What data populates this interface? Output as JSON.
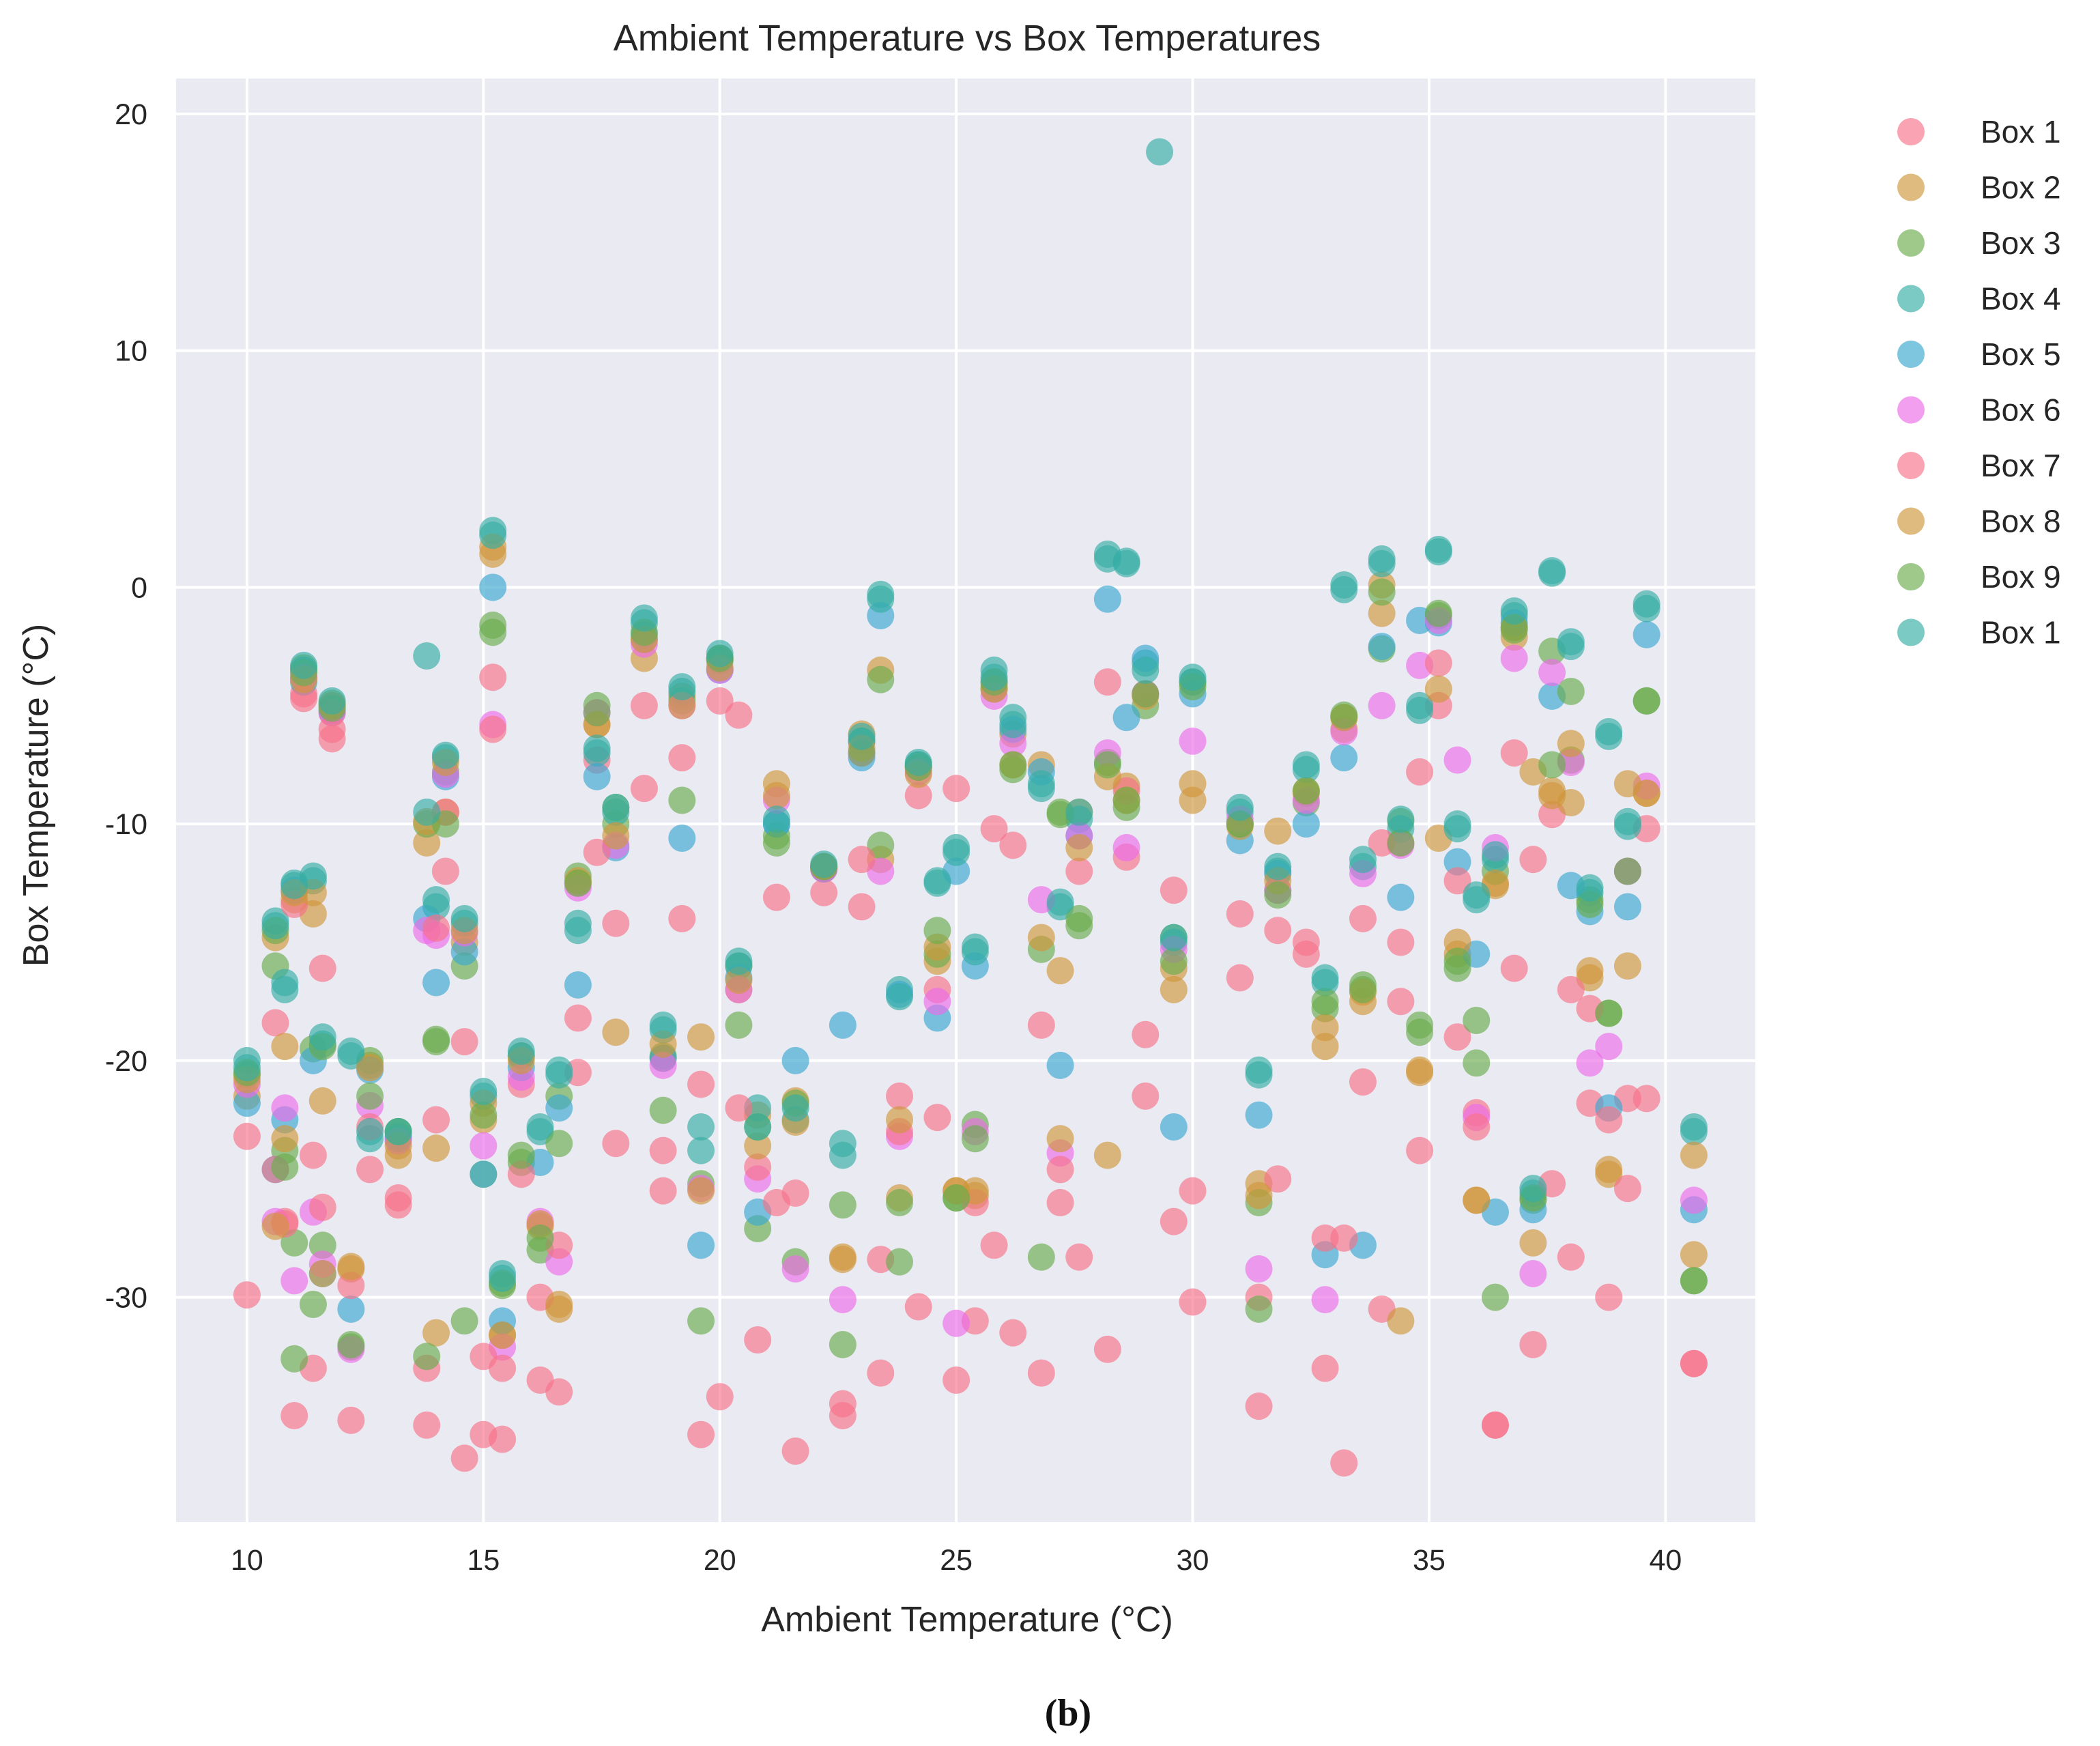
{
  "caption": "(b)",
  "chart_data": {
    "type": "scatter",
    "title": "Ambient Temperature vs Box Temperatures",
    "xlabel": "Ambient Temperature (°C)",
    "ylabel": "Box Temperature (°C)",
    "xlim": [
      8.5,
      41.9
    ],
    "ylim": [
      -39.5,
      21.5
    ],
    "xticks": [
      10,
      15,
      20,
      25,
      30,
      35,
      40
    ],
    "yticks": [
      -30,
      -20,
      -10,
      0,
      10,
      20
    ],
    "grid": true,
    "legend_position": "right-outside-top",
    "background": "#eaeaf2",
    "marker_alpha": 0.65,
    "x": [
      10.0,
      10.6,
      10.8,
      11.0,
      11.2,
      11.4,
      11.6,
      11.8,
      12.2,
      12.6,
      13.2,
      13.8,
      14.0,
      14.2,
      14.6,
      15.0,
      15.2,
      15.4,
      15.8,
      16.2,
      16.6,
      17.0,
      17.4,
      17.8,
      18.4,
      18.8,
      19.2,
      19.6,
      20.0,
      20.4,
      20.8,
      21.2,
      21.6,
      22.2,
      22.6,
      23.0,
      23.4,
      23.8,
      24.2,
      24.6,
      25.0,
      25.4,
      25.8,
      26.2,
      26.8,
      27.2,
      27.6,
      28.2,
      28.6,
      29.0,
      29.6,
      30.0,
      31.0,
      31.4,
      31.8,
      32.4,
      32.8,
      33.2,
      33.6,
      34.0,
      34.4,
      34.8,
      35.2,
      35.6,
      36.0,
      36.4,
      36.8,
      37.2,
      37.6,
      38.0,
      38.4,
      38.8,
      39.2,
      39.6,
      40.6
    ],
    "series": [
      {
        "name": "Box 1",
        "color": "#f77189",
        "values": [
          -23.2,
          -18.4,
          -26.8,
          -35.0,
          -4.5,
          -33.0,
          -16.1,
          -6.4,
          -35.2,
          -24.6,
          -26.1,
          -35.4,
          -22.5,
          -12.0,
          -36.8,
          -35.8,
          -3.8,
          -36.0,
          -21.0,
          -33.5,
          -34.0,
          -20.5,
          -7.3,
          -14.2,
          -5.0,
          -23.8,
          -7.2,
          -35.8,
          -34.2,
          -5.4,
          -31.8,
          -13.1,
          -36.5,
          -12.9,
          -35.0,
          -13.5,
          -33.2,
          -21.5,
          -8.8,
          -17.0,
          -33.5,
          -31.0,
          -10.2,
          -31.5,
          -33.2,
          -26.0,
          -28.3,
          -32.2,
          -11.4,
          -21.5,
          -12.8,
          -30.2,
          -16.5,
          -34.6,
          -14.5,
          -15.5,
          -33.0,
          -37.0,
          -20.9,
          -30.5,
          -17.5,
          -23.8,
          -5.0,
          -19.0,
          -22.2,
          -35.4,
          -16.1,
          -32.0,
          -9.6,
          -28.3,
          -21.8,
          -30.0,
          -21.6,
          -10.2,
          -32.8
        ]
      },
      {
        "name": "Box 2",
        "color": "#d0963a",
        "values": [
          -21.5,
          -14.8,
          -19.4,
          -13.2,
          -3.8,
          -13.8,
          -21.7,
          -5.3,
          -28.8,
          -20.2,
          -24.0,
          -10.8,
          -31.5,
          -9.5,
          -15.0,
          -22.5,
          1.4,
          -31.6,
          -19.8,
          -27.0,
          -30.5,
          -12.5,
          -5.8,
          -18.8,
          -3.0,
          -19.9,
          -4.6,
          -19.0,
          -3.0,
          -17.0,
          -22.3,
          -8.3,
          -21.7,
          -11.9,
          -28.4,
          -6.2,
          -11.5,
          -25.8,
          -7.6,
          -15.8,
          -25.5,
          -25.7,
          -4.2,
          -6.2,
          -7.5,
          -16.2,
          -9.5,
          -24.0,
          -8.4,
          -4.5,
          -16.1,
          -9.0,
          -10.0,
          -25.2,
          -10.3,
          -8.7,
          -19.4,
          -6.0,
          -17.5,
          0.1,
          -10.8,
          -20.5,
          -10.6,
          -15.5,
          -25.9,
          -12.6,
          -2.1,
          -27.7,
          -8.8,
          -9.1,
          -16.5,
          -24.8,
          -16.0,
          -8.7,
          -28.2
        ]
      },
      {
        "name": "Box 3",
        "color": "#6aac4d",
        "values": [
          -20.6,
          -16.0,
          -23.8,
          -27.7,
          -3.4,
          -19.5,
          -27.8,
          -4.9,
          -32.1,
          -20.0,
          -23.0,
          -10.0,
          -19.1,
          -7.8,
          -16.0,
          -24.8,
          -1.9,
          -29.5,
          -24.3,
          -28.0,
          -21.5,
          -12.2,
          -5.0,
          -10.0,
          -2.2,
          -19.8,
          -4.8,
          -25.2,
          -3.1,
          -16.0,
          -27.1,
          -10.5,
          -28.5,
          -11.8,
          -26.1,
          -6.5,
          -10.9,
          -26.0,
          -7.5,
          -15.5,
          -25.8,
          -22.7,
          -4.3,
          -7.7,
          -15.3,
          -9.6,
          -14.3,
          -7.4,
          -9.3,
          -5.0,
          -14.8,
          -4.0,
          -10.0,
          -26.0,
          -12.8,
          -9.1,
          -17.8,
          -5.5,
          -16.8,
          -2.6,
          -9.9,
          -18.8,
          -1.2,
          -16.1,
          -20.1,
          -12.0,
          -1.8,
          -25.9,
          -2.7,
          -7.3,
          -13.2,
          -18.0,
          -12.0,
          -4.8,
          -29.3
        ]
      },
      {
        "name": "Box 4",
        "color": "#36ada4",
        "values": [
          -20.0,
          -14.1,
          -17.0,
          -12.5,
          -3.5,
          -12.4,
          -19.3,
          -5.0,
          -19.8,
          -23.3,
          -23.2,
          -2.9,
          -13.5,
          -7.2,
          -14.2,
          -21.5,
          2.4,
          -29.0,
          -19.8,
          -23.0,
          -20.6,
          -14.5,
          -7.0,
          -9.5,
          -1.5,
          -18.7,
          -4.4,
          -22.8,
          -3.0,
          -16.0,
          -22.0,
          -10.0,
          -22.5,
          -11.9,
          -24.0,
          -6.5,
          -0.3,
          -17.0,
          -7.5,
          -12.5,
          -11.0,
          -15.2,
          -3.5,
          -5.5,
          -8.5,
          -13.5,
          -9.8,
          1.2,
          1.0,
          -3.2,
          -15.0,
          -4.0,
          -9.5,
          -20.6,
          -12.0,
          -7.7,
          -16.7,
          -0.1,
          -11.8,
          1.2,
          -10.2,
          -5.0,
          1.5,
          -10.0,
          -13.2,
          -11.5,
          -1.2,
          -25.6,
          0.6,
          -2.5,
          -12.9,
          -6.1,
          -9.9,
          -0.7,
          -23.0
        ]
      },
      {
        "name": "Box 5",
        "color": "#39a7d0",
        "values": [
          -21.8,
          -24.6,
          -22.5,
          -12.8,
          -4.0,
          -20.0,
          -29.0,
          -5.2,
          -30.5,
          -20.4,
          -23.3,
          -14.0,
          -16.7,
          -8.0,
          -15.4,
          -24.8,
          0.0,
          -31.0,
          -20.3,
          -24.3,
          -22.0,
          -16.8,
          -8.0,
          -11.0,
          -2.0,
          -19.9,
          -10.6,
          -27.8,
          -3.5,
          -16.5,
          -26.4,
          -10.0,
          -20.0,
          -11.8,
          -18.5,
          -7.2,
          -1.2,
          -17.2,
          -7.6,
          -18.2,
          -12.0,
          -16.0,
          -4.0,
          -6.0,
          -7.8,
          -20.2,
          -10.5,
          -0.5,
          -5.5,
          -3.0,
          -22.8,
          -4.5,
          -10.7,
          -22.3,
          -12.1,
          -10.0,
          -28.2,
          -7.2,
          -27.8,
          -2.5,
          -13.1,
          -1.4,
          -1.5,
          -11.6,
          -15.5,
          -26.4,
          -1.5,
          -26.3,
          -4.6,
          -12.6,
          -13.7,
          -22.0,
          -13.5,
          -2.0,
          -26.3
        ]
      },
      {
        "name": "Box 6",
        "color": "#ed6be8",
        "values": [
          -21.0,
          -26.8,
          -22.0,
          -29.3,
          -3.8,
          -26.4,
          -28.6,
          -5.3,
          -32.2,
          -21.9,
          -23.4,
          -14.5,
          -14.7,
          -7.9,
          -14.6,
          -23.6,
          -5.8,
          -32.1,
          -20.7,
          -26.8,
          -28.5,
          -12.7,
          -5.3,
          -10.9,
          -2.4,
          -20.2,
          -5.0,
          -25.4,
          -3.5,
          -17.0,
          -25.0,
          -9.0,
          -28.8,
          -11.9,
          -30.1,
          -7.0,
          -12.0,
          -23.2,
          -7.8,
          -17.5,
          -31.1,
          -23.0,
          -4.6,
          -6.6,
          -13.2,
          -23.9,
          -10.5,
          -7.0,
          -11.0,
          -4.5,
          -15.3,
          -6.5,
          -9.8,
          -28.8,
          -12.8,
          -9.0,
          -30.1,
          -6.1,
          -12.1,
          -5.0,
          -10.9,
          -3.3,
          -1.4,
          -7.3,
          -22.4,
          -11.0,
          -3.0,
          -29.0,
          -3.6,
          -7.4,
          -20.1,
          -19.4,
          -12.0,
          -8.4,
          -25.9
        ]
      },
      {
        "name": "Box 7",
        "color": "#f77189",
        "values": [
          -29.9,
          -24.6,
          -26.9,
          -13.4,
          -4.7,
          -24.0,
          -26.2,
          -6.0,
          -29.5,
          -22.8,
          -25.8,
          -33.0,
          -14.4,
          -9.5,
          -19.2,
          -32.5,
          -6.0,
          -33.0,
          -24.8,
          -30.0,
          -27.8,
          -18.2,
          -11.2,
          -23.5,
          -8.5,
          -25.5,
          -14.0,
          -21.0,
          -4.8,
          -22.0,
          -24.5,
          -26.0,
          -25.6,
          -11.8,
          -34.5,
          -11.5,
          -28.4,
          -23.0,
          -30.4,
          -22.4,
          -8.5,
          -26.0,
          -27.8,
          -10.9,
          -18.5,
          -24.6,
          -12.0,
          -4.0,
          -8.6,
          -18.9,
          -26.8,
          -25.5,
          -13.8,
          -30.0,
          -25.0,
          -15.0,
          -27.5,
          -27.5,
          -14.0,
          -10.8,
          -15.0,
          -7.8,
          -3.2,
          -12.4,
          -22.8,
          -35.4,
          -7.0,
          -11.5,
          -25.2,
          -17.0,
          -17.8,
          -22.5,
          -25.4,
          -21.6,
          -32.8
        ]
      },
      {
        "name": "Box 8",
        "color": "#d0963a",
        "values": [
          -20.8,
          -27.0,
          -23.3,
          -12.9,
          -3.9,
          -12.9,
          -29.0,
          -5.0,
          -28.7,
          -20.3,
          -23.6,
          -9.9,
          -23.7,
          -7.4,
          -14.5,
          -21.8,
          1.7,
          -31.6,
          -20.0,
          -26.9,
          -30.3,
          -12.4,
          -5.8,
          -10.5,
          -2.2,
          -19.3,
          -5.0,
          -25.5,
          -3.4,
          -16.6,
          -23.6,
          -8.8,
          -22.6,
          -11.8,
          -28.3,
          -6.8,
          -3.5,
          -22.5,
          -7.9,
          -15.2,
          -25.5,
          -25.5,
          -4.3,
          -7.5,
          -14.8,
          -23.3,
          -11.0,
          -8.0,
          -9.0,
          -4.6,
          -17.0,
          -8.3,
          -10.1,
          -25.7,
          -12.4,
          -8.6,
          -18.6,
          -5.5,
          -17.1,
          -1.1,
          -31.0,
          -20.4,
          -4.3,
          -15.0,
          -25.9,
          -12.5,
          -1.7,
          -7.8,
          -8.6,
          -6.6,
          -16.2,
          -24.6,
          -8.3,
          -8.7,
          -24.0
        ]
      },
      {
        "name": "Box 9",
        "color": "#6aac4d",
        "values": [
          -20.5,
          -14.5,
          -24.5,
          -32.6,
          -3.6,
          -30.3,
          -19.4,
          -5.1,
          -32.0,
          -21.5,
          -23.0,
          -32.5,
          -19.2,
          -10.0,
          -31.0,
          -22.3,
          -1.6,
          -29.4,
          -24.0,
          -27.5,
          -23.5,
          -12.5,
          -5.3,
          -9.3,
          -1.9,
          -22.1,
          -9.0,
          -31.0,
          -3.0,
          -18.5,
          -22.8,
          -10.8,
          -21.8,
          -11.8,
          -32.0,
          -7.0,
          -3.9,
          -28.5,
          -7.6,
          -14.5,
          -25.8,
          -23.3,
          -4.0,
          -7.5,
          -28.3,
          -9.5,
          -14.0,
          -7.5,
          -9.0,
          -4.5,
          -15.8,
          -4.2,
          -10.0,
          -30.5,
          -13.0,
          -8.6,
          -17.5,
          -5.4,
          -17.0,
          -0.2,
          -10.8,
          -18.5,
          -1.1,
          -15.8,
          -18.3,
          -30.0,
          -1.7,
          -25.8,
          -7.5,
          -4.4,
          -13.4,
          -18.0,
          -12.0,
          -4.8,
          -29.3
        ]
      },
      {
        "name": "Box 1",
        "color": "#36ada4",
        "values": [
          -20.3,
          -14.3,
          -16.7,
          -12.6,
          -3.3,
          -12.2,
          -19.0,
          -4.8,
          -19.6,
          -23.0,
          -23.0,
          -9.5,
          -13.2,
          -7.1,
          -14.0,
          -21.3,
          2.2,
          -29.2,
          -19.6,
          -22.8,
          -20.4,
          -14.2,
          -6.8,
          -9.3,
          -1.3,
          -18.5,
          -4.2,
          -23.8,
          -2.8,
          -15.8,
          -22.8,
          -9.8,
          -22.0,
          -11.7,
          -23.5,
          -6.3,
          -0.5,
          -17.3,
          -7.4,
          -12.4,
          -11.2,
          -15.4,
          -3.8,
          -5.8,
          -8.3,
          -13.3,
          -9.5,
          1.4,
          1.1,
          -3.5,
          -14.8,
          -3.8,
          -9.3,
          -20.4,
          -11.8,
          -7.5,
          -16.5,
          0.1,
          -11.5,
          1.0,
          -9.8,
          -5.2,
          1.6,
          -10.2,
          -13.0,
          -11.3,
          -1.0,
          -25.4,
          0.7,
          -2.3,
          -12.7,
          -6.3,
          -10.1,
          -0.9,
          -22.8
        ]
      }
    ],
    "outlier": {
      "x": 29.3,
      "y": 18.4,
      "series": "Box 4"
    }
  }
}
